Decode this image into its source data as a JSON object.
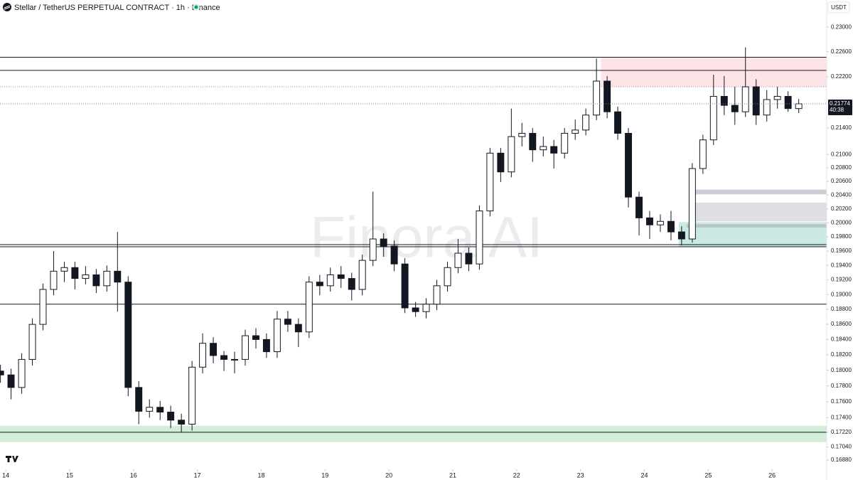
{
  "chart_data": {
    "type": "candlestick",
    "title": "Stellar / TetherUS PERPETUAL CONTRACT · 1h · Binance",
    "currency": "USDT",
    "watermark": "Finora AI",
    "countdown": "40:38",
    "up_color": "#ffffff",
    "down_color": "#131722",
    "log_scale": true,
    "xlim": [
      13.91,
      26.855
    ],
    "xticks": [
      14,
      15,
      16,
      17,
      18,
      19,
      20,
      21,
      22,
      23,
      24,
      25,
      26
    ],
    "ylim": [
      0.1677,
      0.2345
    ],
    "yticks": [
      {
        "value": 0.23,
        "label": "0.23000"
      },
      {
        "value": 0.226,
        "label": "0.22600"
      },
      {
        "value": 0.222,
        "label": "0.22200"
      },
      {
        "value": 0.214,
        "label": "0.21400"
      },
      {
        "value": 0.21,
        "label": "0.21000"
      },
      {
        "value": 0.208,
        "label": "0.20800"
      },
      {
        "value": 0.206,
        "label": "0.20600"
      },
      {
        "value": 0.204,
        "label": "0.20400"
      },
      {
        "value": 0.202,
        "label": "0.20200"
      },
      {
        "value": 0.2,
        "label": "0.20000"
      },
      {
        "value": 0.198,
        "label": "0.19800"
      },
      {
        "value": 0.196,
        "label": "0.19600"
      },
      {
        "value": 0.194,
        "label": "0.19400"
      },
      {
        "value": 0.192,
        "label": "0.19200"
      },
      {
        "value": 0.19,
        "label": "0.19000"
      },
      {
        "value": 0.188,
        "label": "0.18800"
      },
      {
        "value": 0.186,
        "label": "0.18600"
      },
      {
        "value": 0.184,
        "label": "0.18400"
      },
      {
        "value": 0.182,
        "label": "0.18200"
      },
      {
        "value": 0.18,
        "label": "0.18000"
      },
      {
        "value": 0.178,
        "label": "0.17800"
      },
      {
        "value": 0.176,
        "label": "0.17600"
      },
      {
        "value": 0.174,
        "label": "0.17400"
      },
      {
        "value": 0.1722,
        "label": "0.17220"
      },
      {
        "value": 0.1704,
        "label": "0.17040"
      },
      {
        "value": 0.1688,
        "label": "0.16880"
      }
    ],
    "x": [
      13.917,
      14.083,
      14.25,
      14.417,
      14.583,
      14.75,
      14.917,
      15.083,
      15.25,
      15.417,
      15.583,
      15.75,
      15.917,
      16.083,
      16.25,
      16.417,
      16.583,
      16.75,
      16.917,
      17.083,
      17.25,
      17.417,
      17.583,
      17.75,
      17.917,
      18.083,
      18.25,
      18.417,
      18.583,
      18.75,
      18.917,
      19.083,
      19.25,
      19.417,
      19.583,
      19.75,
      19.917,
      20.083,
      20.25,
      20.417,
      20.583,
      20.75,
      20.917,
      21.083,
      21.25,
      21.417,
      21.583,
      21.75,
      21.917,
      22.083,
      22.25,
      22.417,
      22.583,
      22.75,
      22.917,
      23.083,
      23.25,
      23.417,
      23.583,
      23.75,
      23.917,
      24.083,
      24.25,
      24.417,
      24.583,
      24.75,
      24.917,
      25.083,
      25.25,
      25.417,
      25.583,
      25.75,
      25.917,
      26.083,
      26.25,
      26.417
    ],
    "open": [
      0.1799,
      0.1794,
      0.1778,
      0.1814,
      0.186,
      0.1907,
      0.1932,
      0.1937,
      0.1922,
      0.1927,
      0.1912,
      0.1932,
      0.1917,
      0.1778,
      0.1748,
      0.1753,
      0.1747,
      0.1737,
      0.1732,
      0.1804,
      0.1835,
      0.1819,
      0.1814,
      0.1814,
      0.1845,
      0.184,
      0.1824,
      0.1867,
      0.186,
      0.185,
      0.1917,
      0.1912,
      0.1927,
      0.1922,
      0.1907,
      0.1947,
      0.1977,
      0.1967,
      0.1942,
      0.1882,
      0.1877,
      0.1887,
      0.1912,
      0.1937,
      0.1957,
      0.1942,
      0.2017,
      0.2102,
      0.2074,
      0.2127,
      0.2132,
      0.2107,
      0.2112,
      0.2102,
      0.2132,
      0.2137,
      0.216,
      0.2213,
      0.2165,
      0.2132,
      0.2037,
      0.2007,
      0.1997,
      0.2002,
      0.1987,
      0.1977,
      0.2079,
      0.2122,
      0.2189,
      0.2175,
      0.2165,
      0.2204,
      0.216,
      0.2184,
      0.2189,
      0.217
    ],
    "high": [
      0.1807,
      0.1802,
      0.1822,
      0.1868,
      0.1915,
      0.196,
      0.1945,
      0.1945,
      0.1939,
      0.1935,
      0.194,
      0.1987,
      0.1925,
      0.1786,
      0.1763,
      0.1761,
      0.1755,
      0.1745,
      0.1812,
      0.1848,
      0.1843,
      0.1825,
      0.1824,
      0.1853,
      0.1855,
      0.1848,
      0.1878,
      0.1878,
      0.1868,
      0.1925,
      0.1927,
      0.1937,
      0.1939,
      0.193,
      0.1955,
      0.2045,
      0.1985,
      0.1975,
      0.195,
      0.189,
      0.1895,
      0.192,
      0.1945,
      0.1977,
      0.1965,
      0.2025,
      0.211,
      0.211,
      0.217,
      0.2148,
      0.214,
      0.2127,
      0.2122,
      0.214,
      0.2153,
      0.217,
      0.2249,
      0.2221,
      0.2173,
      0.214,
      0.2045,
      0.2017,
      0.2012,
      0.2017,
      0.1995,
      0.2087,
      0.213,
      0.2223,
      0.2221,
      0.2204,
      0.2267,
      0.2216,
      0.2199,
      0.2204,
      0.2197,
      0.2185
    ],
    "low": [
      0.1784,
      0.1763,
      0.177,
      0.1806,
      0.1852,
      0.1899,
      0.1917,
      0.1907,
      0.1914,
      0.1902,
      0.1904,
      0.1877,
      0.1767,
      0.1732,
      0.174,
      0.1737,
      0.1727,
      0.1722,
      0.1724,
      0.1796,
      0.1809,
      0.1799,
      0.1796,
      0.1806,
      0.1828,
      0.1816,
      0.1816,
      0.185,
      0.183,
      0.1842,
      0.1899,
      0.1904,
      0.1909,
      0.1892,
      0.1899,
      0.1939,
      0.1952,
      0.1932,
      0.1875,
      0.187,
      0.1868,
      0.1879,
      0.1904,
      0.1929,
      0.1932,
      0.1934,
      0.2009,
      0.2059,
      0.2066,
      0.2112,
      0.2089,
      0.2097,
      0.2079,
      0.2094,
      0.2122,
      0.2129,
      0.2152,
      0.2155,
      0.2122,
      0.2022,
      0.1982,
      0.1977,
      0.1987,
      0.1975,
      0.1968,
      0.1972,
      0.2071,
      0.2114,
      0.216,
      0.2145,
      0.2157,
      0.2145,
      0.215,
      0.217,
      0.2165,
      0.2163
    ],
    "close": [
      0.1794,
      0.1778,
      0.1814,
      0.186,
      0.1907,
      0.1932,
      0.1937,
      0.1922,
      0.1927,
      0.1912,
      0.1932,
      0.1917,
      0.1778,
      0.1748,
      0.1753,
      0.1747,
      0.1737,
      0.1732,
      0.1804,
      0.1835,
      0.1819,
      0.1814,
      0.1814,
      0.1845,
      0.184,
      0.1824,
      0.1867,
      0.186,
      0.185,
      0.1917,
      0.1912,
      0.1927,
      0.1922,
      0.1907,
      0.1947,
      0.1977,
      0.1967,
      0.1942,
      0.1882,
      0.1877,
      0.1887,
      0.1912,
      0.1937,
      0.1957,
      0.1942,
      0.2017,
      0.2102,
      0.2074,
      0.2127,
      0.2132,
      0.2107,
      0.2112,
      0.2102,
      0.2132,
      0.2137,
      0.216,
      0.2213,
      0.2165,
      0.2132,
      0.2037,
      0.2007,
      0.1997,
      0.2002,
      0.1987,
      0.1977,
      0.2079,
      0.2122,
      0.2189,
      0.2175,
      0.2165,
      0.2204,
      0.216,
      0.2184,
      0.2189,
      0.217,
      0.21774
    ],
    "zones": [
      {
        "from": 23.32,
        "low": 0.2204,
        "high": 0.2251,
        "color": "#fde4e6"
      },
      {
        "from": 24.54,
        "low": 0.1966,
        "high": 0.2001,
        "color": "#cbe9e3"
      },
      {
        "from": 24.76,
        "low": 0.2041,
        "high": 0.2048,
        "color": "#cdcdd6"
      },
      {
        "from": 24.76,
        "low": 0.2002,
        "high": 0.2029,
        "color": "#dfdfe3"
      },
      {
        "from": 24.66,
        "low": 0.1993,
        "high": 0.1998,
        "color": "#b8c6c9"
      },
      {
        "from": 13.91,
        "low": 0.171,
        "high": 0.173,
        "color": "#d4edd8"
      }
    ],
    "levels": [
      {
        "value": 0.2251,
        "style": "solid"
      },
      {
        "value": 0.223,
        "style": "solid"
      },
      {
        "value": 0.2204,
        "style": "dotted"
      },
      {
        "value": 0.1969,
        "style": "solid"
      },
      {
        "value": 0.1966,
        "style": "solid"
      },
      {
        "value": 0.1887,
        "style": "solid"
      },
      {
        "value": 0.1722,
        "style": "solid"
      }
    ]
  }
}
